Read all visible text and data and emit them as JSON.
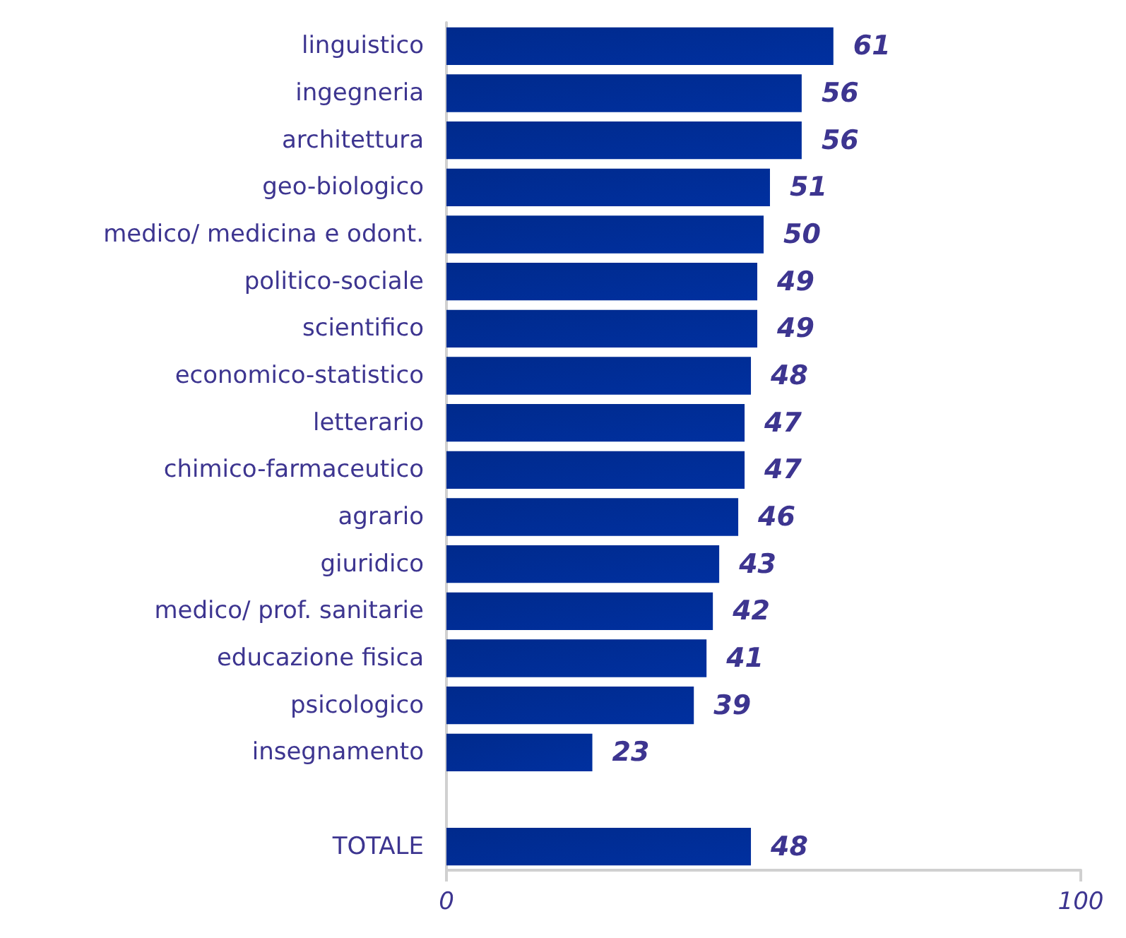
{
  "chart_data": {
    "type": "bar",
    "orientation": "horizontal",
    "categories": [
      "linguistico",
      "ingegneria",
      "architettura",
      "geo-biologico",
      "medico/ medicina e odont.",
      "politico-sociale",
      "scientifico",
      "economico-statistico",
      "letterario",
      "chimico-farmaceutico",
      "agrario",
      "giuridico",
      "medico/ prof. sanitarie",
      "educazione fisica",
      "psicologico",
      "insegnamento",
      null,
      "TOTALE"
    ],
    "values": [
      61,
      56,
      56,
      51,
      50,
      49,
      49,
      48,
      47,
      47,
      46,
      43,
      42,
      41,
      39,
      23,
      null,
      48
    ],
    "color": "#002a8c",
    "xlim": [
      0,
      100
    ],
    "xticks": [
      0,
      100
    ],
    "data_labels": true,
    "grid": false
  }
}
